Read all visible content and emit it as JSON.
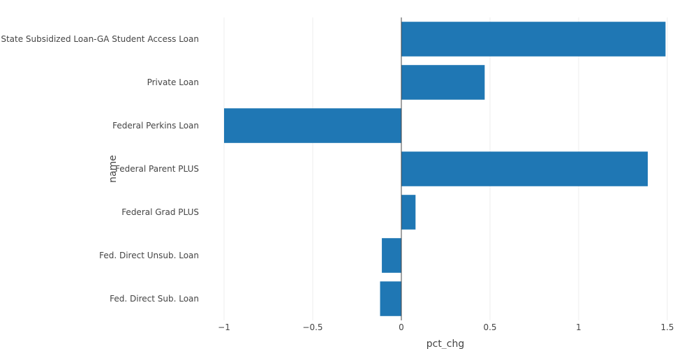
{
  "chart_data": {
    "type": "bar",
    "orientation": "horizontal",
    "xlabel": "pct_chg",
    "ylabel": "name",
    "xlim": [
      -1,
      1.5
    ],
    "xticks": [
      -1,
      -0.5,
      0,
      0.5,
      1,
      1.5
    ],
    "xtick_labels": [
      "−1",
      "−0.5",
      "0",
      "0.5",
      "1",
      "1.5"
    ],
    "grid": true,
    "bar_color": "#1f77b4",
    "categories": [
      "State Subsidized Loan-GA Student Access Loan",
      "Private Loan",
      "Federal Perkins Loan",
      "Federal Parent PLUS",
      "Federal Grad PLUS",
      "Fed. Direct Unsub. Loan",
      "Fed. Direct Sub. Loan"
    ],
    "values": [
      1.49,
      0.47,
      -1.0,
      1.39,
      0.08,
      -0.11,
      -0.12
    ]
  }
}
